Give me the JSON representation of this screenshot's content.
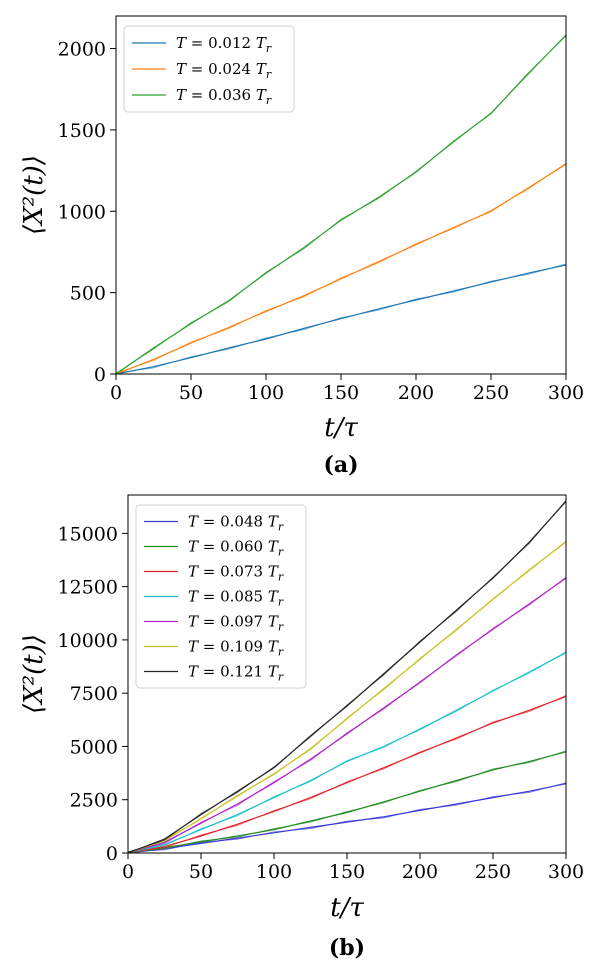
{
  "chart_data": [
    {
      "type": "line",
      "caption": "(a)",
      "xlabel": "t/τ",
      "ylabel": "⟨X²(t)⟩",
      "xlim": [
        0,
        300
      ],
      "ylim": [
        0,
        2200
      ],
      "xticks": [
        "0",
        "50",
        "100",
        "150",
        "200",
        "250",
        "300"
      ],
      "yticks": [
        "0",
        "500",
        "1000",
        "1500",
        "2000"
      ],
      "legend_position": "top-left",
      "series": [
        {
          "name": "T = 0.012 T_r",
          "color": "#1f77b4",
          "x": [
            0,
            25,
            50,
            75,
            100,
            125,
            150,
            175,
            200,
            225,
            250,
            275,
            300
          ],
          "y": [
            0,
            45,
            100,
            160,
            215,
            280,
            340,
            400,
            455,
            510,
            565,
            620,
            670
          ]
        },
        {
          "name": "T = 0.024 T_r",
          "color": "#ff7f0e",
          "x": [
            0,
            25,
            50,
            75,
            100,
            125,
            150,
            175,
            200,
            225,
            250,
            275,
            300
          ],
          "y": [
            0,
            90,
            190,
            285,
            385,
            480,
            585,
            690,
            795,
            900,
            1000,
            1145,
            1290
          ]
        },
        {
          "name": "T = 0.036 T_r",
          "color": "#2ca02c",
          "x": [
            0,
            25,
            50,
            75,
            100,
            125,
            150,
            175,
            200,
            225,
            250,
            275,
            300
          ],
          "y": [
            0,
            160,
            310,
            450,
            620,
            775,
            945,
            1085,
            1240,
            1430,
            1600,
            1850,
            2080
          ]
        }
      ]
    },
    {
      "type": "line",
      "caption": "(b)",
      "xlabel": "t/τ",
      "ylabel": "⟨X²(t)⟩",
      "xlim": [
        0,
        300
      ],
      "ylim": [
        0,
        16800
      ],
      "xticks": [
        "0",
        "50",
        "100",
        "150",
        "200",
        "250",
        "300"
      ],
      "yticks": [
        "0",
        "2500",
        "5000",
        "7500",
        "10000",
        "12500",
        "15000"
      ],
      "legend_position": "top-left",
      "series": [
        {
          "name": "T = 0.048 T_r",
          "color": "#3b3bd8",
          "x": [
            0,
            25,
            50,
            75,
            100,
            125,
            150,
            175,
            200,
            225,
            250,
            275,
            300
          ],
          "y": [
            0,
            200,
            450,
            700,
            950,
            1200,
            1450,
            1700,
            2000,
            2300,
            2600,
            2900,
            3250
          ]
        },
        {
          "name": "T = 0.060 T_r",
          "color": "#228b22",
          "x": [
            0,
            25,
            50,
            75,
            100,
            125,
            150,
            175,
            200,
            225,
            250,
            275,
            300
          ],
          "y": [
            0,
            250,
            520,
            800,
            1100,
            1500,
            1900,
            2400,
            2900,
            3400,
            3900,
            4300,
            4750
          ]
        },
        {
          "name": "T = 0.073 T_r",
          "color": "#e8202a",
          "x": [
            0,
            25,
            50,
            75,
            100,
            125,
            150,
            175,
            200,
            225,
            250,
            275,
            300
          ],
          "y": [
            0,
            300,
            800,
            1350,
            1950,
            2600,
            3300,
            4000,
            4700,
            5400,
            6100,
            6700,
            7350
          ]
        },
        {
          "name": "T = 0.085 T_r",
          "color": "#18c0c8",
          "x": [
            0,
            25,
            50,
            75,
            100,
            125,
            150,
            175,
            200,
            225,
            250,
            275,
            300
          ],
          "y": [
            0,
            400,
            1100,
            1800,
            2600,
            3400,
            4300,
            5000,
            5800,
            6700,
            7600,
            8500,
            9400
          ]
        },
        {
          "name": "T = 0.097 T_r",
          "color": "#b021c8",
          "x": [
            0,
            25,
            50,
            75,
            100,
            125,
            150,
            175,
            200,
            225,
            250,
            275,
            300
          ],
          "y": [
            0,
            500,
            1400,
            2300,
            3300,
            4400,
            5600,
            6800,
            8000,
            9300,
            10500,
            11700,
            12900
          ]
        },
        {
          "name": "T = 0.109 T_r",
          "color": "#c8c21e",
          "x": [
            0,
            25,
            50,
            75,
            100,
            125,
            150,
            175,
            200,
            225,
            250,
            275,
            300
          ],
          "y": [
            0,
            600,
            1600,
            2700,
            3700,
            4900,
            6300,
            7700,
            9100,
            10500,
            11900,
            13300,
            14600
          ]
        },
        {
          "name": "T = 0.121 T_r",
          "color": "#222222",
          "x": [
            0,
            25,
            50,
            75,
            100,
            125,
            150,
            175,
            200,
            225,
            250,
            275,
            300
          ],
          "y": [
            0,
            650,
            1800,
            2900,
            4000,
            5500,
            6900,
            8400,
            9900,
            11400,
            12900,
            14600,
            16500
          ]
        }
      ]
    }
  ]
}
